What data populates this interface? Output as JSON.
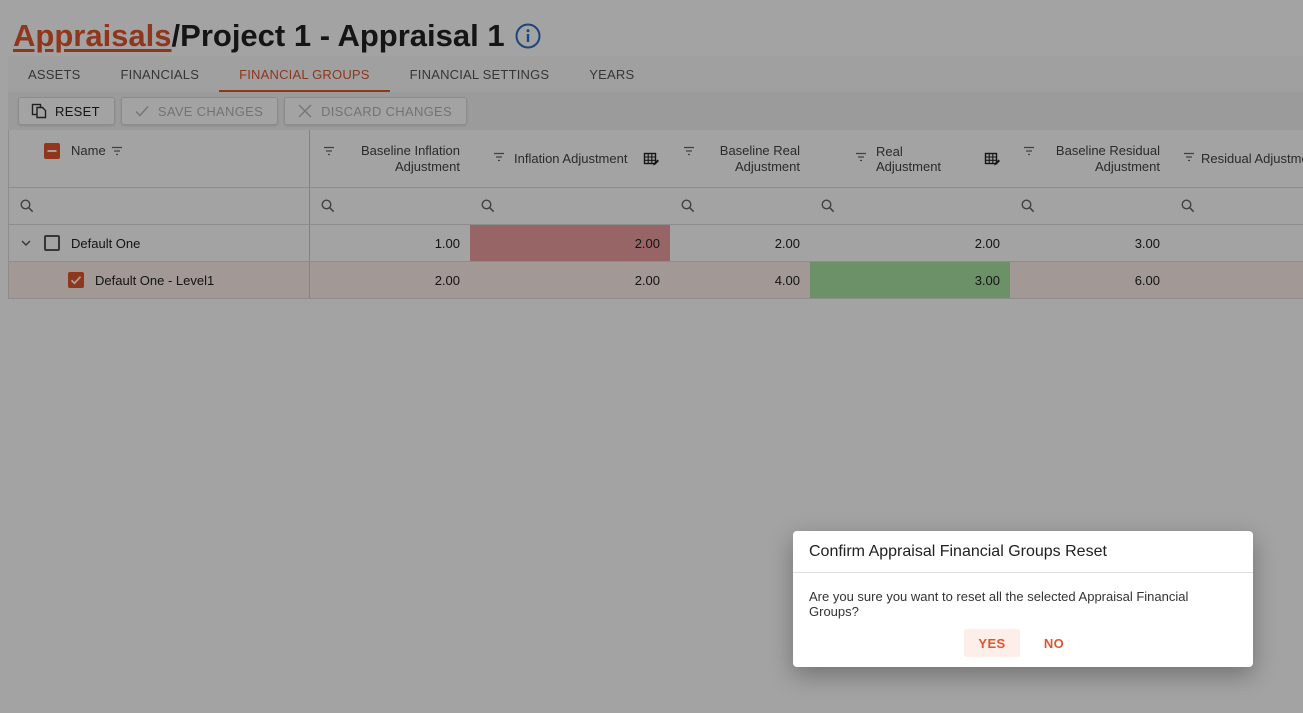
{
  "breadcrumb": {
    "root": "Appraisals",
    "separator": "/",
    "current": "Project 1 - Appraisal 1"
  },
  "tabs": [
    {
      "label": "ASSETS"
    },
    {
      "label": "FINANCIALS"
    },
    {
      "label": "FINANCIAL GROUPS",
      "active": true
    },
    {
      "label": "FINANCIAL SETTINGS"
    },
    {
      "label": "YEARS"
    }
  ],
  "toolbar": {
    "reset": "RESET",
    "save": "SAVE CHANGES",
    "discard": "DISCARD CHANGES"
  },
  "grid": {
    "columns": {
      "name": "Name",
      "baseline_inflation": "Baseline Inflation Adjustment",
      "inflation": "Inflation Adjustment",
      "baseline_real": "Baseline Real Adjustment",
      "real": "Real Adjustment",
      "baseline_residual": "Baseline Residual Adjustment",
      "residual": "Residual Adjustment"
    },
    "rows": [
      {
        "name": "Default One",
        "baseline_inflation": "1.00",
        "inflation": "2.00",
        "baseline_real": "2.00",
        "real": "2.00",
        "baseline_residual": "3.00"
      },
      {
        "name": "Default One - Level1",
        "baseline_inflation": "2.00",
        "inflation": "2.00",
        "baseline_real": "4.00",
        "real": "3.00",
        "baseline_residual": "6.00"
      }
    ]
  },
  "colors": {
    "accent": "#e0552e",
    "modified_cell": "#ed9f9f",
    "changed_cell": "#a9e3a4"
  },
  "dialog": {
    "title": "Confirm Appraisal Financial Groups Reset",
    "message": "Are you sure you want to reset all the selected Appraisal Financial Groups?",
    "yes": "YES",
    "no": "NO"
  }
}
